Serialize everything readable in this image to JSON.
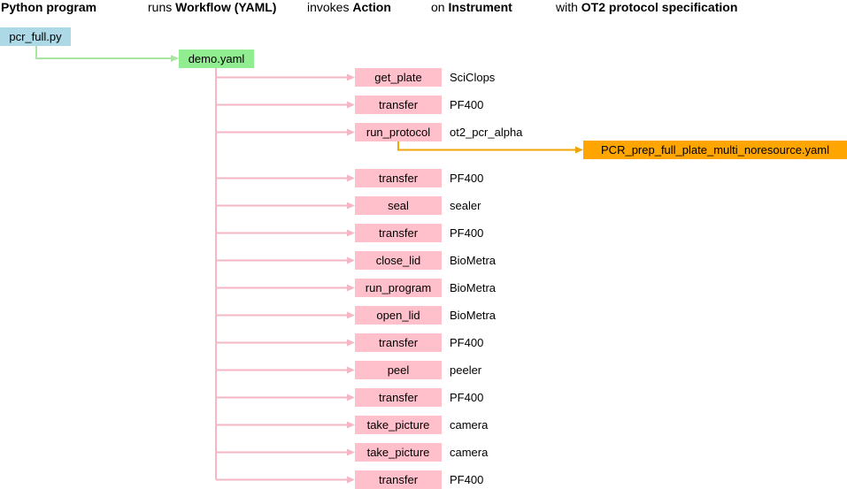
{
  "header": {
    "col1_bold": "Python program",
    "col2_prefix": "runs",
    "col2_bold": "Workflow (YAML)",
    "col3_prefix": "invokes",
    "col3_bold": "Action",
    "col4_prefix": "on",
    "col4_bold": "Instrument",
    "col5_prefix": "with",
    "col5_bold": "OT2 protocol specification"
  },
  "program": "pcr_full.py",
  "workflow": "demo.yaml",
  "steps": [
    {
      "action": "get_plate",
      "instrument": "SciClops"
    },
    {
      "action": "transfer",
      "instrument": "PF400"
    },
    {
      "action": "run_protocol",
      "instrument": "ot2_pcr_alpha"
    },
    {
      "action": "transfer",
      "instrument": "PF400"
    },
    {
      "action": "seal",
      "instrument": "sealer"
    },
    {
      "action": "transfer",
      "instrument": "PF400"
    },
    {
      "action": "close_lid",
      "instrument": "BioMetra"
    },
    {
      "action": "run_program",
      "instrument": "BioMetra"
    },
    {
      "action": "open_lid",
      "instrument": "BioMetra"
    },
    {
      "action": "transfer",
      "instrument": "PF400"
    },
    {
      "action": "peel",
      "instrument": "peeler"
    },
    {
      "action": "transfer",
      "instrument": "PF400"
    },
    {
      "action": "take_picture",
      "instrument": "camera"
    },
    {
      "action": "take_picture",
      "instrument": "camera"
    },
    {
      "action": "transfer",
      "instrument": "PF400"
    }
  ],
  "protocol": "PCR_prep_full_plate_multi_noresource.yaml",
  "colors": {
    "program": "#add8e6",
    "workflow": "#90ee90",
    "action": "#ffc0cb",
    "protocol": "#ffa500"
  }
}
